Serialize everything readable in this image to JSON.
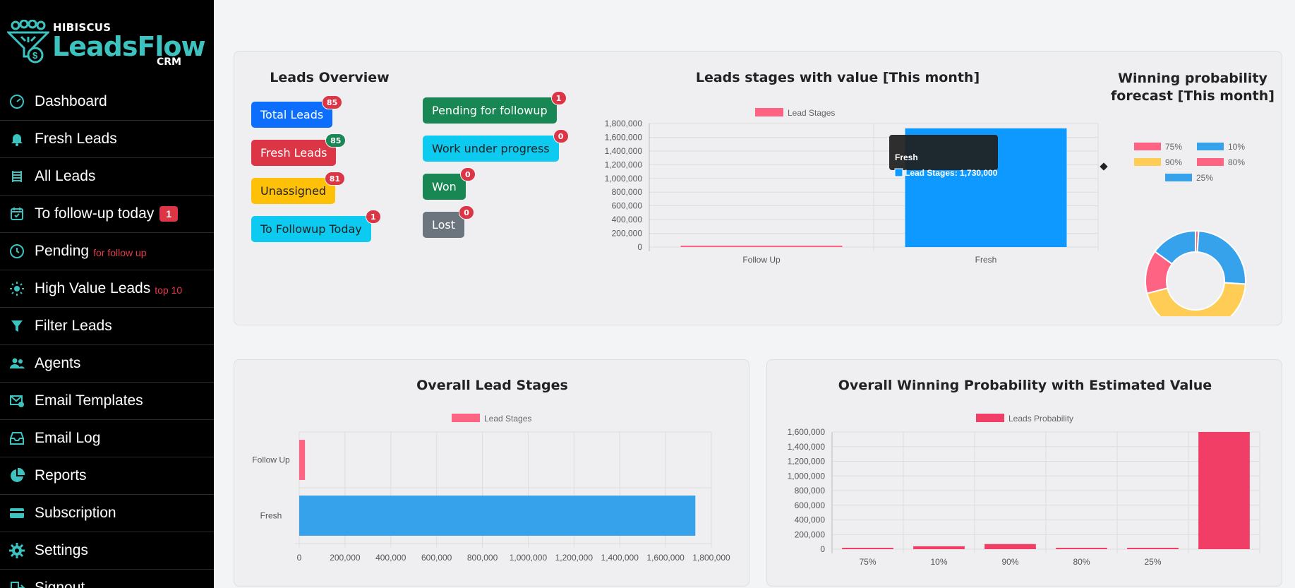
{
  "brand": {
    "top": "HIBISCUS",
    "name": "LeadsFlow",
    "sub": "CRM"
  },
  "nav": [
    {
      "label": "Dashboard",
      "icon": "gauge-icon"
    },
    {
      "label": "Fresh Leads",
      "icon": "bell-icon"
    },
    {
      "label": "All Leads",
      "icon": "list-icon"
    },
    {
      "label": "To follow-up today",
      "icon": "calendar-icon",
      "count": "1"
    },
    {
      "label": "Pending",
      "icon": "clock-icon",
      "tag": "for follow up"
    },
    {
      "label": "High Value Leads",
      "icon": "sun-icon",
      "tag": "top 10"
    },
    {
      "label": "Filter Leads",
      "icon": "filter-icon"
    },
    {
      "label": "Agents",
      "icon": "users-icon"
    },
    {
      "label": "Email Templates",
      "icon": "envelope-gear-icon"
    },
    {
      "label": "Email Log",
      "icon": "inbox-icon"
    },
    {
      "label": "Reports",
      "icon": "pie-chart-icon"
    },
    {
      "label": "Subscription",
      "icon": "card-icon"
    },
    {
      "label": "Settings",
      "icon": "gear-icon"
    },
    {
      "label": "Signout",
      "icon": "signout-icon"
    }
  ],
  "overview": {
    "title": "Leads Overview",
    "left": [
      {
        "label": "Total Leads",
        "count": "85",
        "bg": "#0d6efd",
        "fg": "#ffffff"
      },
      {
        "label": "Fresh Leads",
        "count": "85",
        "bg": "#dc3545",
        "fg": "#ffffff",
        "badge": "#198754"
      },
      {
        "label": "Unassigned",
        "count": "81",
        "bg": "#ffc107",
        "fg": "#222222"
      },
      {
        "label": "To Followup Today",
        "count": "1",
        "bg": "#0dcaf0",
        "fg": "#222222"
      }
    ],
    "right": [
      {
        "label": "Pending for followup",
        "count": "1",
        "bg": "#198754",
        "fg": "#ffffff"
      },
      {
        "label": "Work under progress",
        "count": "0",
        "bg": "#0dcaf0",
        "fg": "#222222"
      },
      {
        "label": "Won",
        "count": "0",
        "bg": "#198754",
        "fg": "#ffffff"
      },
      {
        "label": "Lost",
        "count": "0",
        "bg": "#6c757d",
        "fg": "#ffffff"
      }
    ]
  },
  "chart_data": [
    {
      "type": "bar",
      "title": "Leads stages with value [This month]",
      "categories": [
        "Follow Up",
        "Fresh"
      ],
      "series": [
        {
          "name": "Lead Stages",
          "values": [
            15000,
            1730000
          ],
          "colors": [
            "#ff6384",
            "#0d99ff"
          ]
        }
      ],
      "ylim": [
        0,
        1800000
      ],
      "yticks": [
        "1,800,000",
        "1,600,000",
        "1,400,000",
        "1,200,000",
        "1,000,000",
        "800,000",
        "600,000",
        "400,000",
        "200,000",
        "0"
      ],
      "tooltip": {
        "title": "Fresh",
        "text": "Lead Stages: 1,730,000"
      },
      "legend": "top"
    },
    {
      "type": "pie",
      "title": "Winning probability forecast [This month]",
      "categories": [
        "75%",
        "10%",
        "90%",
        "80%",
        "25%"
      ],
      "values": [
        1,
        25,
        45,
        14,
        15
      ],
      "colors": [
        "#ff6384",
        "#36a2eb",
        "#ffcd56",
        "#ff6384",
        "#36a2eb"
      ],
      "legend": "top"
    },
    {
      "type": "bar",
      "title": "Overall Lead Stages",
      "orientation": "horizontal",
      "categories": [
        "Follow Up",
        "Fresh"
      ],
      "series": [
        {
          "name": "Lead Stages",
          "values": [
            25000,
            1730000
          ],
          "colors": [
            "#ff6384",
            "#36a2eb"
          ]
        }
      ],
      "xlim": [
        0,
        1800000
      ],
      "xticks": [
        "0",
        "200,000",
        "400,000",
        "600,000",
        "800,000",
        "1,000,000",
        "1,200,000",
        "1,400,000",
        "1,600,000",
        "1,800,000"
      ],
      "legend": "top"
    },
    {
      "type": "bar",
      "title": "Overall Winning Probability with Estimated Value",
      "categories": [
        "75%",
        "10%",
        "90%",
        "80%",
        "25%",
        ""
      ],
      "series": [
        {
          "name": "Leads Probability",
          "values": [
            5000,
            40000,
            70000,
            15000,
            15000,
            1600000
          ],
          "color": "#f03e66"
        }
      ],
      "ylim": [
        0,
        1600000
      ],
      "yticks": [
        "1,600,000",
        "1,400,000",
        "1,200,000",
        "1,000,000",
        "800,000",
        "600,000",
        "400,000",
        "200,000",
        "0"
      ],
      "legend": "top"
    }
  ]
}
